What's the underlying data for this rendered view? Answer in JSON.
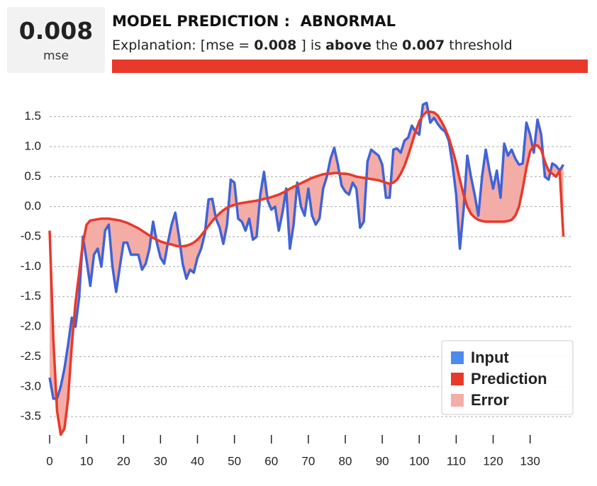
{
  "header": {
    "score": "0.008",
    "score_label": "mse",
    "title": "MODEL PREDICTION :  ABNORMAL",
    "explanation": {
      "prefix": "Explanation: [mse = ",
      "mse": "0.008",
      "mid": " ] is ",
      "verdict": "above",
      "the": " the ",
      "threshold": "0.007",
      "suffix": " threshold"
    }
  },
  "chart_data": {
    "type": "line",
    "x": [
      0,
      1,
      2,
      3,
      4,
      5,
      6,
      7,
      8,
      9,
      10,
      11,
      12,
      13,
      14,
      15,
      16,
      17,
      18,
      19,
      20,
      21,
      22,
      23,
      24,
      25,
      26,
      27,
      28,
      29,
      30,
      31,
      32,
      33,
      34,
      35,
      36,
      37,
      38,
      39,
      40,
      41,
      42,
      43,
      44,
      45,
      46,
      47,
      48,
      49,
      50,
      51,
      52,
      53,
      54,
      55,
      56,
      57,
      58,
      59,
      60,
      61,
      62,
      63,
      64,
      65,
      66,
      67,
      68,
      69,
      70,
      71,
      72,
      73,
      74,
      75,
      76,
      77,
      78,
      79,
      80,
      81,
      82,
      83,
      84,
      85,
      86,
      87,
      88,
      89,
      90,
      91,
      92,
      93,
      94,
      95,
      96,
      97,
      98,
      99,
      100,
      101,
      102,
      103,
      104,
      105,
      106,
      107,
      108,
      109,
      110,
      111,
      112,
      113,
      114,
      115,
      116,
      117,
      118,
      119,
      120,
      121,
      122,
      123,
      124,
      125,
      126,
      127,
      128,
      129,
      130,
      131,
      132,
      133,
      134,
      135,
      136,
      137,
      138,
      139
    ],
    "series": [
      {
        "name": "Input",
        "color": "#3f63d8",
        "legend_color": "#4d8af0",
        "values": [
          -2.85,
          -3.2,
          -3.2,
          -3.0,
          -2.7,
          -2.3,
          -1.85,
          -2.0,
          -1.5,
          -0.5,
          -0.9,
          -1.32,
          -0.8,
          -0.7,
          -1.0,
          -0.4,
          -0.3,
          -1.0,
          -1.42,
          -1.0,
          -0.6,
          -0.6,
          -0.8,
          -0.8,
          -0.8,
          -1.05,
          -0.95,
          -0.7,
          -0.25,
          -0.6,
          -0.85,
          -0.95,
          -0.6,
          -0.3,
          -0.1,
          -0.5,
          -0.95,
          -1.2,
          -1.05,
          -1.1,
          -0.85,
          -0.7,
          -0.45,
          0.12,
          0.13,
          -0.2,
          -0.35,
          -0.62,
          -0.3,
          0.45,
          0.4,
          -0.2,
          -0.25,
          -0.4,
          -0.2,
          -0.55,
          -0.5,
          0.2,
          0.58,
          0.1,
          -0.05,
          0.0,
          -0.4,
          -0.1,
          0.3,
          -0.7,
          -0.3,
          0.4,
          0.0,
          -0.15,
          0.3,
          -0.15,
          -0.3,
          -0.2,
          0.3,
          0.5,
          0.8,
          0.98,
          0.7,
          0.35,
          0.25,
          0.2,
          0.4,
          0.3,
          -0.35,
          -0.25,
          0.75,
          0.95,
          0.9,
          0.85,
          0.7,
          0.15,
          0.15,
          0.95,
          0.97,
          0.9,
          1.1,
          1.15,
          1.35,
          1.25,
          1.2,
          1.7,
          1.73,
          1.4,
          1.48,
          1.38,
          1.3,
          1.25,
          1.1,
          0.7,
          0.2,
          -0.7,
          -0.05,
          0.85,
          0.5,
          0.2,
          -0.15,
          0.5,
          0.95,
          0.6,
          0.3,
          0.6,
          0.15,
          1.05,
          0.85,
          0.95,
          0.8,
          0.7,
          0.72,
          1.4,
          1.2,
          0.9,
          1.45,
          1.2,
          0.5,
          0.45,
          0.72,
          0.68,
          0.6,
          0.7
        ]
      },
      {
        "name": "Prediction",
        "color": "#e8392a",
        "legend_color": "#e8392a",
        "values": [
          -0.4,
          -2.2,
          -3.4,
          -3.8,
          -3.7,
          -3.2,
          -2.3,
          -1.6,
          -1.1,
          -0.6,
          -0.3,
          -0.23,
          -0.22,
          -0.21,
          -0.2,
          -0.2,
          -0.2,
          -0.21,
          -0.22,
          -0.23,
          -0.25,
          -0.27,
          -0.3,
          -0.33,
          -0.36,
          -0.4,
          -0.44,
          -0.48,
          -0.52,
          -0.55,
          -0.58,
          -0.6,
          -0.62,
          -0.63,
          -0.65,
          -0.66,
          -0.66,
          -0.65,
          -0.63,
          -0.6,
          -0.55,
          -0.48,
          -0.4,
          -0.32,
          -0.24,
          -0.17,
          -0.11,
          -0.06,
          -0.02,
          0.01,
          0.03,
          0.05,
          0.06,
          0.07,
          0.08,
          0.09,
          0.1,
          0.11,
          0.13,
          0.14,
          0.16,
          0.18,
          0.2,
          0.23,
          0.26,
          0.3,
          0.33,
          0.36,
          0.39,
          0.42,
          0.45,
          0.48,
          0.5,
          0.52,
          0.54,
          0.55,
          0.55,
          0.56,
          0.56,
          0.55,
          0.55,
          0.54,
          0.52,
          0.5,
          0.49,
          0.48,
          0.47,
          0.46,
          0.45,
          0.44,
          0.42,
          0.4,
          0.38,
          0.4,
          0.45,
          0.55,
          0.68,
          0.85,
          1.05,
          1.25,
          1.42,
          1.52,
          1.58,
          1.58,
          1.57,
          1.52,
          1.42,
          1.3,
          1.15,
          0.95,
          0.72,
          0.45,
          0.2,
          0.0,
          -0.12,
          -0.18,
          -0.22,
          -0.24,
          -0.25,
          -0.25,
          -0.25,
          -0.25,
          -0.25,
          -0.25,
          -0.24,
          -0.22,
          -0.15,
          0.0,
          0.3,
          0.65,
          0.92,
          1.02,
          1.02,
          0.95,
          0.75,
          0.6,
          0.55,
          0.5,
          0.6,
          -0.5
        ]
      }
    ],
    "error_area": {
      "name": "Error",
      "color": "#f4aca6"
    },
    "xlim": [
      0,
      141
    ],
    "xticks": [
      0,
      10,
      20,
      30,
      40,
      50,
      60,
      70,
      80,
      90,
      100,
      110,
      120,
      130
    ],
    "ylim": [
      -3.9,
      1.85
    ],
    "yticks": [
      1.5,
      {
        "value": 1,
        "label": "1.0"
      },
      0.5,
      {
        "value": 0,
        "label": "0.0"
      },
      -0.5,
      {
        "value": -1,
        "label": "-1.0"
      },
      -1.5,
      {
        "value": -2,
        "label": "-2.0"
      },
      -2.5,
      {
        "value": -3,
        "label": "-3.0"
      },
      -3.5
    ],
    "grid": true,
    "legend": "lower right"
  }
}
